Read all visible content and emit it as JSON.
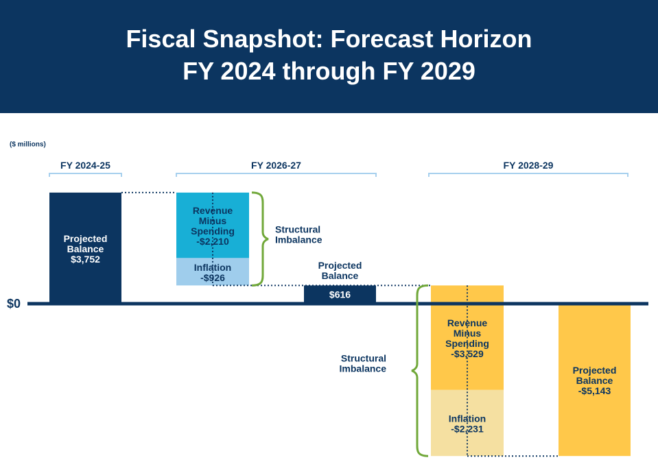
{
  "header": {
    "title_line1": "Fiscal Snapshot: Forecast Horizon",
    "title_line2": "FY 2024 through FY 2029"
  },
  "colors": {
    "banner": "#0c3560",
    "navy": "#0c3560",
    "cyan": "#18afd6",
    "light_blue": "#9fcdec",
    "gold": "#ffc84a",
    "pale_gold": "#f5e0a1",
    "bracket_green": "#71a83a",
    "period_line": "#a7d0ee",
    "text_dark": "#0c3560"
  },
  "chart_data": {
    "type": "waterfall",
    "units_label": "($ millions)",
    "zero_label": "$0",
    "periods": [
      "FY 2024-25",
      "FY 2026-27",
      "FY 2028-29"
    ],
    "bars": [
      {
        "period": "FY 2024-25",
        "kind": "balance",
        "label": "Projected\nBalance",
        "value_label": "$3,752",
        "value": 3752
      },
      {
        "period": "FY 2026-27",
        "kind": "change",
        "label": "Revenue\nMinus\nSpending",
        "value_label": "-$2,210",
        "value": -2210
      },
      {
        "period": "FY 2026-27",
        "kind": "change",
        "label": "Inflation",
        "value_label": "-$926",
        "value": -926
      },
      {
        "period": "FY 2026-27",
        "kind": "balance",
        "label": "Projected\nBalance",
        "value_label": "$616",
        "value": 616
      },
      {
        "period": "FY 2028-29",
        "kind": "change",
        "label": "Revenue\nMinus\nSpending",
        "value_label": "-$3,529",
        "value": -3529
      },
      {
        "period": "FY 2028-29",
        "kind": "change",
        "label": "Inflation",
        "value_label": "-$2,231",
        "value": -2231
      },
      {
        "period": "FY 2028-29",
        "kind": "balance",
        "label": "Projected\nBalance",
        "value_label": "-$5,143",
        "value": -5143
      }
    ],
    "brackets": [
      {
        "label": "Structural\nImbalance",
        "spans": [
          "-$2,210",
          "-$926"
        ]
      },
      {
        "label": "Structural\nImbalance",
        "spans": [
          "-$3,529",
          "-$2,231"
        ]
      }
    ]
  }
}
